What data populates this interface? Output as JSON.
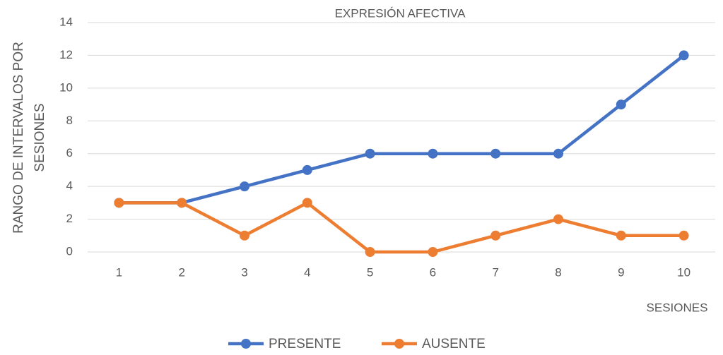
{
  "chart_data": {
    "type": "line",
    "title": "EXPRESIÓN AFECTIVA",
    "x_label": "SESIONES",
    "y_label": "RANGO DE INTERVALOS POR SESIONES",
    "categories": [
      "1",
      "2",
      "3",
      "4",
      "5",
      "6",
      "7",
      "8",
      "9",
      "10"
    ],
    "series": [
      {
        "name": "PRESENTE",
        "color": "#4472c4",
        "values": [
          3,
          3,
          4,
          5,
          6,
          6,
          6,
          6,
          9,
          12
        ]
      },
      {
        "name": "AUSENTE",
        "color": "#ed7d31",
        "values": [
          3,
          3,
          1,
          3,
          0,
          0,
          1,
          2,
          1,
          1
        ]
      }
    ],
    "ylim": [
      0,
      14
    ],
    "yticks": [
      0,
      2,
      4,
      6,
      8,
      10,
      12,
      14
    ],
    "grid": true,
    "legend": "bottom"
  }
}
